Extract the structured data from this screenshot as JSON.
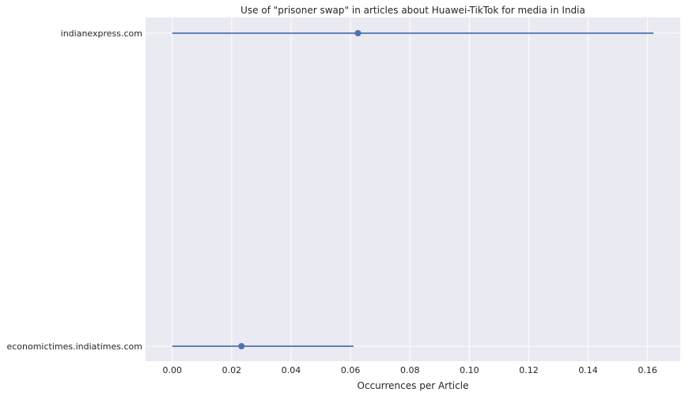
{
  "chart_data": {
    "type": "scatter",
    "title": "Use of \"prisoner swap\" in articles about Huawei-TikTok for media in India",
    "xlabel": "Occurrences per Article",
    "ylabel": "",
    "xlim": [
      -0.009,
      0.171
    ],
    "x_ticks": [
      "0.00",
      "0.02",
      "0.04",
      "0.06",
      "0.08",
      "0.10",
      "0.12",
      "0.14",
      "0.16"
    ],
    "categories": [
      "indianexpress.com",
      "economictimes.indiatimes.com"
    ],
    "series": [
      {
        "values": [
          0.0625,
          0.0233
        ],
        "ci_low": [
          0.0,
          0.0
        ],
        "ci_high": [
          0.162,
          0.061
        ]
      }
    ],
    "grid": true,
    "legend": "none",
    "colors": {
      "background": "#eaeaf2",
      "grid": "#ffffff",
      "series": "#4c72b0"
    }
  }
}
